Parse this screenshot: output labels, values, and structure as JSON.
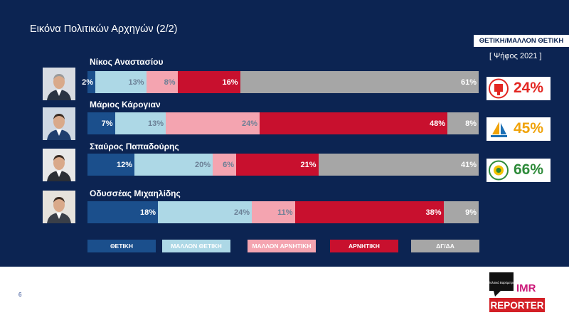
{
  "title": "Εικόνα Πολιτικών Αρχηγών (2/2)",
  "badge": "ΘΕΤΙΚΗ/ΜΑΛΛΟΝ ΘΕΤΙΚΗ",
  "vote_label": "[ Ψήφος 2021 ]",
  "page_number": "6",
  "brand": {
    "top": "Πολιτικά Βαρόμετρα",
    "imr": "IMR",
    "reporter": "REPORTER"
  },
  "colors": {
    "background": "#0c2452",
    "thetiki": "#1b4f8c",
    "mallon_thetiki": "#add8e6",
    "mallon_arnitiki": "#f4a4b0",
    "arnitiki": "#c8102e",
    "dg_da": "#a6a6a6",
    "disy": "#e32722",
    "akel": "#f0a30a",
    "diko": "#2e8b3a"
  },
  "chart_data": {
    "type": "bar",
    "orientation": "horizontal",
    "stacked": true,
    "title": "Εικόνα Πολιτικών Αρχηγών (2/2)",
    "categories": [
      "Νίκος Αναστασίου",
      "Μάριος Κάρογιαν",
      "Σταύρος Παπαδούρης",
      "Οδυσσέας Μιχαηλίδης"
    ],
    "series": [
      {
        "name": "ΘΕΤΙΚΗ",
        "values": [
          2,
          7,
          12,
          18
        ]
      },
      {
        "name": "ΜΑΛΛΟΝ ΘΕΤΙΚΗ",
        "values": [
          13,
          13,
          20,
          24
        ]
      },
      {
        "name": "ΜΑΛΛΟΝ ΑΡΝΗΤΙΚΗ",
        "values": [
          8,
          24,
          6,
          11
        ]
      },
      {
        "name": "ΑΡΝΗΤΙΚΗ",
        "values": [
          16,
          48,
          21,
          38
        ]
      },
      {
        "name": "ΔΓ/ΔΑ",
        "values": [
          61,
          8,
          41,
          9
        ]
      }
    ],
    "value_labels": [
      [
        "2%",
        "13%",
        "8%",
        "16%",
        "61%"
      ],
      [
        "7%",
        "13%",
        "24%",
        "48%",
        "8%"
      ],
      [
        "12%",
        "20%",
        "6%",
        "21%",
        "41%"
      ],
      [
        "18%",
        "24%",
        "11%",
        "38%",
        "9%"
      ]
    ],
    "xlim": [
      0,
      100
    ],
    "legend_position": "bottom",
    "party_positive": [
      {
        "leader": "Νίκος Αναστασίου",
        "value": "24%",
        "logo": "disy-logo-icon"
      },
      {
        "leader": "Μάριος Κάρογιαν",
        "value": "45%",
        "logo": "akel-logo-icon"
      },
      {
        "leader": "Σταύρος Παπαδούρης",
        "value": "66%",
        "logo": "diko-logo-icon"
      }
    ]
  }
}
